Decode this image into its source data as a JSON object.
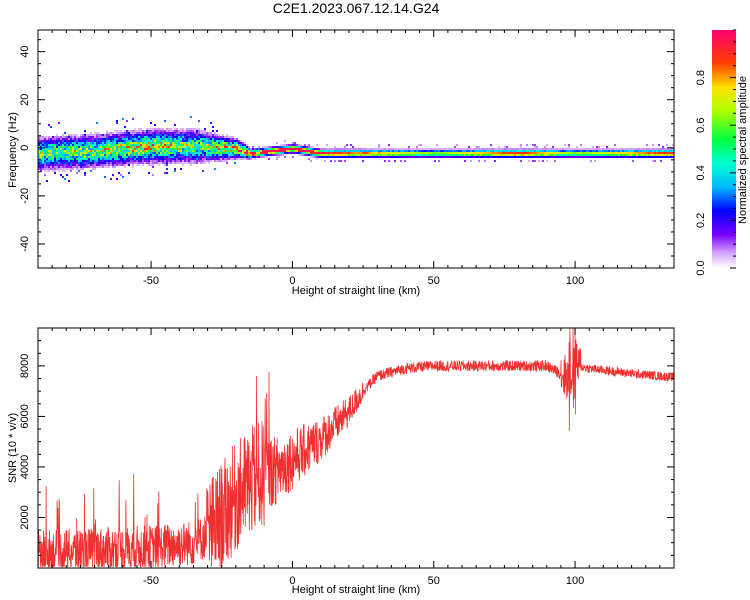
{
  "title": "C2E1.2023.067.12.14.G24",
  "colors": {
    "snr_line": "#f03030",
    "axis": "#000000",
    "background": "#ffffff"
  },
  "chart_data": [
    {
      "type": "heatmap",
      "xlabel": "Height of straight line (km)",
      "ylabel": "Frequency (Hz)",
      "xlim": [
        -90,
        135
      ],
      "ylim": [
        -50,
        49
      ],
      "xticks": [
        -50,
        0,
        50,
        100
      ],
      "yticks": [
        -40,
        -20,
        0,
        20,
        40
      ],
      "colorbar": {
        "label": "Normalized spectral amplitude",
        "range": [
          0,
          1
        ],
        "ticks": [
          0.0,
          0.2,
          0.4,
          0.6,
          0.8
        ],
        "colormap": "rainbow"
      },
      "band": {
        "description_points": [
          {
            "x": -90,
            "center": -2,
            "spread": 10,
            "peak": 0.55
          },
          {
            "x": -70,
            "center": -1,
            "spread": 10,
            "peak": 0.6
          },
          {
            "x": -50,
            "center": 1,
            "spread": 10,
            "peak": 0.7
          },
          {
            "x": -35,
            "center": 1,
            "spread": 10,
            "peak": 0.55
          },
          {
            "x": -20,
            "center": 0,
            "spread": 6,
            "peak": 0.75
          },
          {
            "x": -15,
            "center": -2,
            "spread": 3,
            "peak": 0.95
          },
          {
            "x": 0,
            "center": 0,
            "spread": 3,
            "peak": 0.95
          },
          {
            "x": 10,
            "center": -2,
            "spread": 3,
            "peak": 0.9
          },
          {
            "x": 50,
            "center": -2,
            "spread": 3,
            "peak": 0.6
          },
          {
            "x": 80,
            "center": -2,
            "spread": 3,
            "peak": 0.9
          },
          {
            "x": 100,
            "center": -2,
            "spread": 3,
            "peak": 0.6
          },
          {
            "x": 135,
            "center": -2,
            "spread": 3,
            "peak": 0.9
          }
        ]
      }
    },
    {
      "type": "line",
      "xlabel": "Height of straight line (km)",
      "ylabel": "SNR (10 * v/v)",
      "xlim": [
        -90,
        135
      ],
      "ylim": [
        0,
        9500
      ],
      "xticks": [
        -50,
        0,
        50,
        100
      ],
      "yticks": [
        2000,
        4000,
        6000,
        8000
      ],
      "series": [
        {
          "trend_x": [
            -90,
            -70,
            -50,
            -35,
            -30,
            -25,
            -20,
            -15,
            -10,
            -5,
            0,
            10,
            20,
            25,
            30,
            40,
            50,
            70,
            90,
            98,
            100,
            105,
            120,
            135
          ],
          "trend_y": [
            600,
            700,
            800,
            1000,
            1300,
            2000,
            2800,
            3400,
            3700,
            3900,
            4300,
            5100,
            6200,
            7000,
            7600,
            7900,
            8000,
            8000,
            8000,
            7500,
            8000,
            7900,
            7700,
            7550
          ]
        }
      ]
    }
  ]
}
